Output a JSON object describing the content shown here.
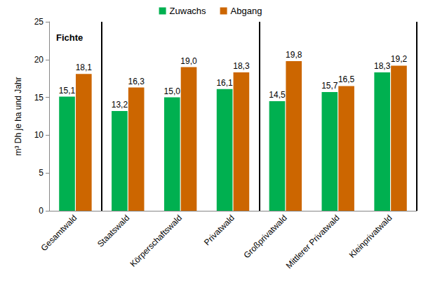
{
  "chart_data": {
    "type": "bar",
    "ylabel": "m³ Dh je ha und Jahr",
    "annotation": "Fichte",
    "categories": [
      "Gesamtwald",
      "Staatswald",
      "Körperschaftswald",
      "Privatwald",
      "Großprivatwald",
      "Mittlerer Privatwald",
      "Kleinprivatwald"
    ],
    "series": [
      {
        "name": "Zuwachs",
        "color": "#00b050",
        "values": [
          15.1,
          13.2,
          15.0,
          16.1,
          14.5,
          15.7,
          18.3
        ],
        "value_labels": [
          "15,1",
          "13,2",
          "15,0",
          "16,1",
          "14,5",
          "15,7",
          "18,3"
        ]
      },
      {
        "name": "Abgang",
        "color": "#cc6600",
        "values": [
          18.1,
          16.3,
          19.0,
          18.3,
          19.8,
          16.5,
          19.2
        ],
        "value_labels": [
          "18,1",
          "16,3",
          "19,0",
          "18,3",
          "19,8",
          "16,5",
          "19,2"
        ]
      }
    ],
    "ylim": [
      0,
      25
    ],
    "yticks": [
      0,
      5,
      10,
      15,
      20,
      25
    ],
    "grid": false,
    "legend": "top",
    "data_labels": true
  }
}
